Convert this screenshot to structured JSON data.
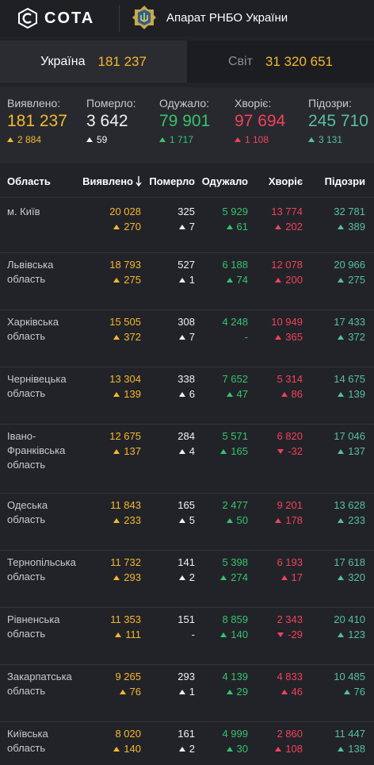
{
  "header": {
    "brand": "COTA",
    "org": "Апарат РНБО України"
  },
  "toggle": {
    "ukraine": {
      "label": "Україна",
      "value": "181 237"
    },
    "world": {
      "label": "Світ",
      "value": "31 320 651"
    }
  },
  "summary": [
    {
      "label": "Виявлено:",
      "value": "181 237",
      "delta": "2 884",
      "dir": "up",
      "color": "#f5b82e"
    },
    {
      "label": "Померло:",
      "value": "3 642",
      "delta": "59",
      "dir": "up",
      "color": "#f2f2f2"
    },
    {
      "label": "Одужало:",
      "value": "79 901",
      "delta": "1 717",
      "dir": "up",
      "color": "#35c46e"
    },
    {
      "label": "Хворіє:",
      "value": "97 694",
      "delta": "1 108",
      "dir": "up",
      "color": "#f2425a"
    },
    {
      "label": "Підозри:",
      "value": "245 710",
      "delta": "3 131",
      "dir": "up",
      "color": "#56bfa5"
    }
  ],
  "table": {
    "headers": [
      "Область",
      "Виявлено",
      "Померло",
      "Одужало",
      "Хворіє",
      "Підозри"
    ],
    "sort_icon": "arrow-down-icon",
    "rows": [
      {
        "name": [
          "м. Київ"
        ],
        "vals": [
          "20 028",
          "325",
          "5 929",
          "13 774",
          "32 781"
        ],
        "deltas": [
          [
            "270",
            "up"
          ],
          [
            "7",
            "up"
          ],
          [
            "61",
            "up"
          ],
          [
            "202",
            "up"
          ],
          [
            "389",
            "up"
          ]
        ]
      },
      {
        "name": [
          "Львівська",
          "область"
        ],
        "vals": [
          "18 793",
          "527",
          "6 188",
          "12 078",
          "20 966"
        ],
        "deltas": [
          [
            "275",
            "up"
          ],
          [
            "1",
            "up"
          ],
          [
            "74",
            "up"
          ],
          [
            "200",
            "up"
          ],
          [
            "275",
            "up"
          ]
        ]
      },
      {
        "name": [
          "Харківська",
          "область"
        ],
        "vals": [
          "15 505",
          "308",
          "4 248",
          "10 949",
          "17 433"
        ],
        "deltas": [
          [
            "372",
            "up"
          ],
          [
            "7",
            "up"
          ],
          [
            "-",
            "none"
          ],
          [
            "365",
            "up"
          ],
          [
            "372",
            "up"
          ]
        ]
      },
      {
        "name": [
          "Чернівецька",
          "область"
        ],
        "vals": [
          "13 304",
          "338",
          "7 652",
          "5 314",
          "14 675"
        ],
        "deltas": [
          [
            "139",
            "up"
          ],
          [
            "6",
            "up"
          ],
          [
            "47",
            "up"
          ],
          [
            "86",
            "up"
          ],
          [
            "139",
            "up"
          ]
        ]
      },
      {
        "name": [
          "Івано-",
          "Франківська",
          "область"
        ],
        "vals": [
          "12 675",
          "284",
          "5 571",
          "6 820",
          "17 046"
        ],
        "deltas": [
          [
            "137",
            "up"
          ],
          [
            "4",
            "up"
          ],
          [
            "165",
            "up"
          ],
          [
            "-32",
            "down"
          ],
          [
            "137",
            "up"
          ]
        ]
      },
      {
        "name": [
          "Одеська область"
        ],
        "vals": [
          "11 843",
          "165",
          "2 477",
          "9 201",
          "13 628"
        ],
        "deltas": [
          [
            "233",
            "up"
          ],
          [
            "5",
            "up"
          ],
          [
            "50",
            "up"
          ],
          [
            "178",
            "up"
          ],
          [
            "233",
            "up"
          ]
        ]
      },
      {
        "name": [
          "Тернопільська",
          "область"
        ],
        "vals": [
          "11 732",
          "141",
          "5 398",
          "6 193",
          "17 618"
        ],
        "deltas": [
          [
            "293",
            "up"
          ],
          [
            "2",
            "up"
          ],
          [
            "274",
            "up"
          ],
          [
            "17",
            "up"
          ],
          [
            "320",
            "up"
          ]
        ]
      },
      {
        "name": [
          "Рівненська",
          "область"
        ],
        "vals": [
          "11 353",
          "151",
          "8 859",
          "2 343",
          "20 410"
        ],
        "deltas": [
          [
            "111",
            "up"
          ],
          [
            "-",
            "none"
          ],
          [
            "140",
            "up"
          ],
          [
            "-29",
            "down"
          ],
          [
            "123",
            "up"
          ]
        ]
      },
      {
        "name": [
          "Закарпатська",
          "область"
        ],
        "vals": [
          "9 265",
          "293",
          "4 139",
          "4 833",
          "10 485"
        ],
        "deltas": [
          [
            "76",
            "up"
          ],
          [
            "1",
            "up"
          ],
          [
            "29",
            "up"
          ],
          [
            "46",
            "up"
          ],
          [
            "76",
            "up"
          ]
        ]
      },
      {
        "name": [
          "Київська",
          "область"
        ],
        "vals": [
          "8 020",
          "161",
          "4 999",
          "2 860",
          "11 447"
        ],
        "deltas": [
          [
            "140",
            "up"
          ],
          [
            "2",
            "up"
          ],
          [
            "30",
            "up"
          ],
          [
            "108",
            "up"
          ],
          [
            "138",
            "up"
          ]
        ]
      }
    ]
  }
}
